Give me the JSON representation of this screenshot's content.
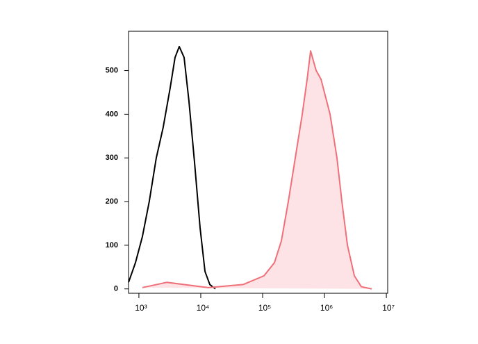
{
  "chart_data": {
    "type": "histogram-line",
    "xscale": "log",
    "xlim": [
      680,
      10500000
    ],
    "xticks": [
      {
        "value": 1000,
        "label": "10³"
      },
      {
        "value": 10000,
        "label": "10⁴"
      },
      {
        "value": 100000,
        "label": "10⁵"
      },
      {
        "value": 1000000,
        "label": "10⁶"
      },
      {
        "value": 10000000,
        "label": "10⁷"
      }
    ],
    "ylim": [
      -10,
      590
    ],
    "yticks": [
      0,
      100,
      200,
      300,
      400,
      500
    ],
    "series": [
      {
        "color": "#000000",
        "x": [
          680,
          880,
          1140,
          1470,
          1910,
          2470,
          3200,
          3840,
          4490,
          5380,
          6440,
          7930,
          9750,
          11700,
          14000,
          17200
        ],
        "values": [
          15,
          60,
          120,
          200,
          300,
          370,
          460,
          530,
          555,
          530,
          430,
          290,
          140,
          40,
          10,
          0
        ]
      },
      {
        "color": "#f0707a",
        "fill": "#fde3e5",
        "x": [
          1140,
          2810,
          13300,
          48400,
          105000,
          155000,
          201000,
          260000,
          337000,
          437000,
          524000,
          596000,
          733000,
          879000,
          1230000,
          1590000,
          1910000,
          2350000,
          3040000,
          3940000,
          5810000
        ],
        "values": [
          3,
          15,
          3,
          10,
          30,
          60,
          110,
          200,
          300,
          400,
          480,
          545,
          500,
          480,
          400,
          300,
          200,
          100,
          30,
          5,
          0
        ]
      }
    ]
  }
}
